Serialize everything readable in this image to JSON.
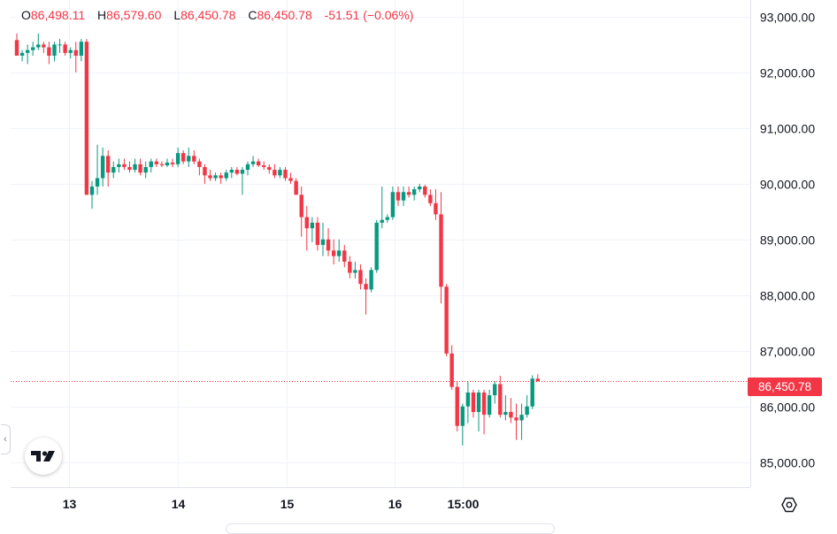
{
  "ohlc": {
    "open_key": "O",
    "open": "86,498.11",
    "high_key": "H",
    "high": "86,579.60",
    "low_key": "L",
    "low": "86,450.78",
    "close_key": "C",
    "close": "86,450.78",
    "change": "-51.51 (−0.06%)"
  },
  "last_price_label": "86,450.78",
  "icons": {
    "logo": "tradingview-logo-icon",
    "settings": "settings-icon",
    "collapse": "chevron-left-icon"
  },
  "colors": {
    "up": "#089981",
    "down": "#f23645",
    "grid": "#f0f3fa",
    "text": "#131722"
  },
  "chart_data": {
    "type": "candlestick",
    "ylim": [
      84550,
      93300
    ],
    "last_price": 86450.78,
    "y_ticks": [
      85000,
      86000,
      87000,
      88000,
      89000,
      90000,
      91000,
      92000,
      93000
    ],
    "y_tick_labels": [
      "85,000.00",
      "86,000.00",
      "87,000.00",
      "88,000.00",
      "89,000.00",
      "90,000.00",
      "91,000.00",
      "92,000.00",
      "93,000.00"
    ],
    "x_ticks": [
      9.8,
      30.0,
      50.2,
      70.4,
      83.0
    ],
    "x_tick_labels": [
      "13",
      "14",
      "15",
      "16",
      "15:00"
    ],
    "candles": [
      [
        92580,
        92700,
        92300,
        92300
      ],
      [
        92300,
        92400,
        92200,
        92350
      ],
      [
        92350,
        92500,
        92150,
        92400
      ],
      [
        92400,
        92550,
        92300,
        92450
      ],
      [
        92450,
        92700,
        92400,
        92500
      ],
      [
        92500,
        92550,
        92350,
        92450
      ],
      [
        92450,
        92550,
        92150,
        92300
      ],
      [
        92300,
        92550,
        92200,
        92500
      ],
      [
        92500,
        92600,
        92350,
        92500
      ],
      [
        92500,
        92550,
        92300,
        92350
      ],
      [
        92350,
        92450,
        92250,
        92400
      ],
      [
        92400,
        92550,
        92000,
        92300
      ],
      [
        92300,
        92600,
        92200,
        92550
      ],
      [
        92550,
        92600,
        89800,
        89800
      ],
      [
        89800,
        90050,
        89550,
        89950
      ],
      [
        89950,
        90700,
        89800,
        90100
      ],
      [
        90100,
        90650,
        89950,
        90500
      ],
      [
        90500,
        90600,
        89950,
        90200
      ],
      [
        90200,
        90400,
        90100,
        90300
      ],
      [
        90300,
        90450,
        90200,
        90350
      ],
      [
        90350,
        90450,
        90250,
        90300
      ],
      [
        90300,
        90400,
        90200,
        90250
      ],
      [
        90250,
        90450,
        90200,
        90350
      ],
      [
        90350,
        90450,
        90150,
        90200
      ],
      [
        90200,
        90400,
        90100,
        90300
      ],
      [
        90300,
        90450,
        90200,
        90400
      ],
      [
        90400,
        90450,
        90300,
        90350
      ],
      [
        90350,
        90400,
        90300,
        90330
      ],
      [
        90330,
        90450,
        90300,
        90380
      ],
      [
        90380,
        90450,
        90300,
        90350
      ],
      [
        90350,
        90650,
        90300,
        90550
      ],
      [
        90550,
        90600,
        90350,
        90400
      ],
      [
        90400,
        90650,
        90300,
        90500
      ],
      [
        90500,
        90600,
        90350,
        90400
      ],
      [
        90400,
        90450,
        90150,
        90300
      ],
      [
        90300,
        90350,
        90000,
        90150
      ],
      [
        90150,
        90250,
        90050,
        90100
      ],
      [
        90100,
        90200,
        90050,
        90150
      ],
      [
        90150,
        90200,
        90000,
        90100
      ],
      [
        90100,
        90250,
        90050,
        90200
      ],
      [
        90200,
        90300,
        90100,
        90250
      ],
      [
        90250,
        90300,
        90150,
        90180
      ],
      [
        90180,
        90300,
        89800,
        90250
      ],
      [
        90250,
        90400,
        90150,
        90350
      ],
      [
        90350,
        90500,
        90300,
        90400
      ],
      [
        90400,
        90450,
        90300,
        90330
      ],
      [
        90330,
        90400,
        90250,
        90300
      ],
      [
        90300,
        90350,
        90180,
        90250
      ],
      [
        90250,
        90350,
        90100,
        90150
      ],
      [
        90150,
        90300,
        90100,
        90250
      ],
      [
        90250,
        90300,
        90050,
        90100
      ],
      [
        90100,
        90200,
        90000,
        90050
      ],
      [
        90050,
        90100,
        89800,
        89800
      ],
      [
        89800,
        89950,
        89050,
        89400
      ],
      [
        89400,
        89600,
        88800,
        89200
      ],
      [
        89200,
        89400,
        88950,
        89300
      ],
      [
        89300,
        89400,
        88800,
        88900
      ],
      [
        88900,
        89300,
        88700,
        89000
      ],
      [
        89000,
        89200,
        88700,
        88800
      ],
      [
        88800,
        89000,
        88550,
        88700
      ],
      [
        88700,
        89000,
        88600,
        88800
      ],
      [
        88800,
        88900,
        88500,
        88600
      ],
      [
        88600,
        88700,
        88300,
        88400
      ],
      [
        88400,
        88600,
        88300,
        88450
      ],
      [
        88450,
        88550,
        88100,
        88200
      ],
      [
        88200,
        88300,
        87650,
        88100
      ],
      [
        88100,
        88500,
        88050,
        88450
      ],
      [
        88450,
        89350,
        88400,
        89300
      ],
      [
        89300,
        89950,
        89200,
        89350
      ],
      [
        89350,
        89450,
        89300,
        89400
      ],
      [
        89400,
        89950,
        89350,
        89850
      ],
      [
        89850,
        89950,
        89600,
        89700
      ],
      [
        89700,
        89950,
        89600,
        89850
      ],
      [
        89850,
        89950,
        89750,
        89800
      ],
      [
        89800,
        89950,
        89700,
        89900
      ],
      [
        89900,
        90000,
        89850,
        89950
      ],
      [
        89950,
        89980,
        89750,
        89800
      ],
      [
        89800,
        89900,
        89600,
        89650
      ],
      [
        89650,
        89900,
        89350,
        89450
      ],
      [
        89450,
        89850,
        87850,
        88150
      ],
      [
        88150,
        88200,
        86900,
        86950
      ],
      [
        86950,
        87100,
        86300,
        86350
      ],
      [
        86350,
        86450,
        85550,
        85650
      ],
      [
        85650,
        86050,
        85300,
        86000
      ],
      [
        86000,
        86450,
        85700,
        86250
      ],
      [
        86250,
        86300,
        85800,
        85900
      ],
      [
        85900,
        86300,
        85550,
        86250
      ],
      [
        86250,
        86300,
        85500,
        85850
      ],
      [
        85850,
        86300,
        85800,
        86200
      ],
      [
        86200,
        86450,
        86050,
        86400
      ],
      [
        86400,
        86550,
        85800,
        85850
      ],
      [
        85850,
        86200,
        85750,
        85900
      ],
      [
        85900,
        86150,
        85700,
        85800
      ],
      [
        85800,
        86050,
        85400,
        85750
      ],
      [
        85750,
        86050,
        85400,
        85850
      ],
      [
        85850,
        86200,
        85800,
        86000
      ],
      [
        86000,
        86560,
        85950,
        86500
      ],
      [
        86498.11,
        86579.6,
        86450.78,
        86450.78
      ]
    ]
  }
}
